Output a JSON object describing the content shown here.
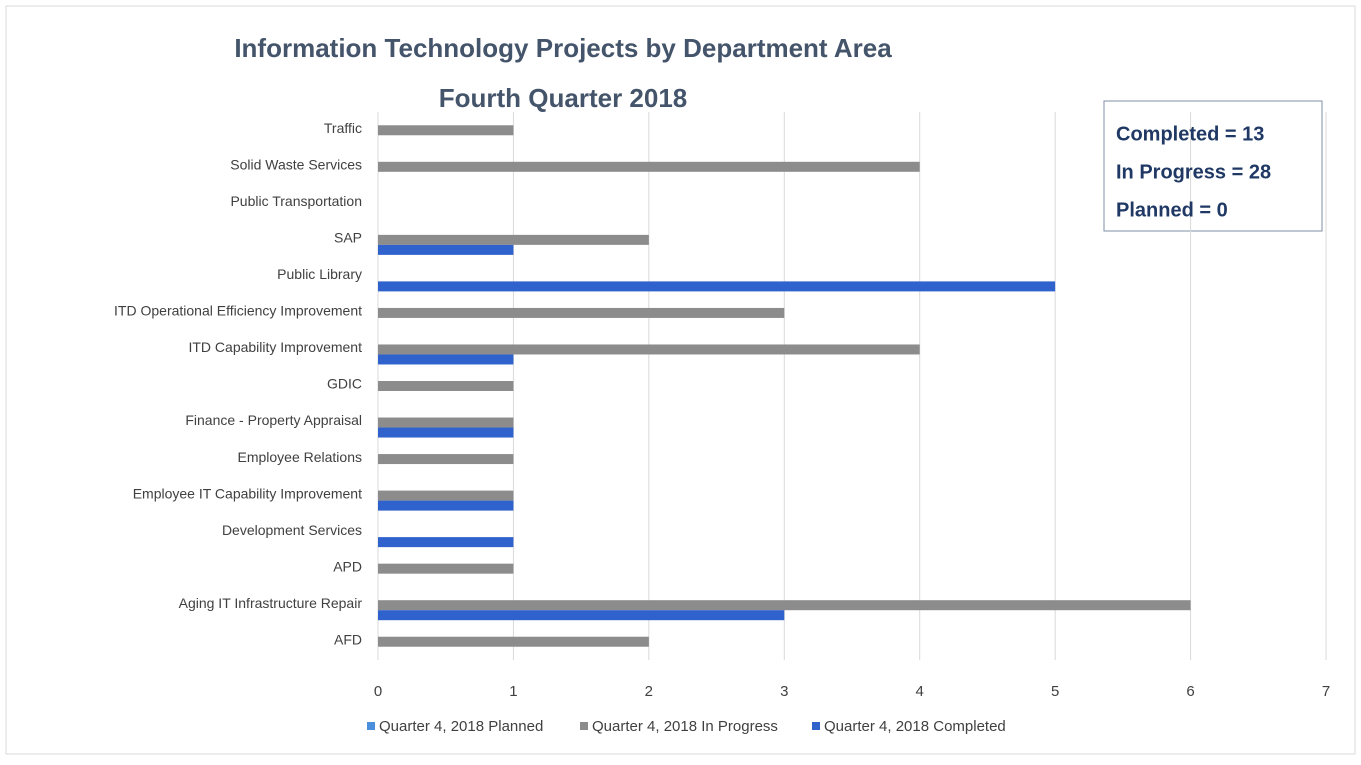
{
  "chart_data": {
    "type": "barh",
    "title": "Information Technology Projects by Department Area",
    "subtitle": "Fourth Quarter 2018",
    "categories": [
      "Traffic",
      "Solid Waste Services",
      "Public Transportation",
      "SAP",
      "Public Library",
      "ITD Operational Efficiency Improvement",
      "ITD Capability Improvement",
      "GDIC",
      "Finance - Property Appraisal",
      "Employee Relations",
      "Employee IT Capability Improvement",
      "Development Services",
      "APD",
      "Aging IT Infrastructure Repair",
      "AFD"
    ],
    "series": [
      {
        "name": "Quarter 4, 2018 Planned",
        "color": "#4a8fdc",
        "values": [
          0,
          0,
          0,
          0,
          0,
          0,
          0,
          0,
          0,
          0,
          0,
          0,
          0,
          0,
          0
        ]
      },
      {
        "name": "Quarter 4, 2018 In Progress",
        "color": "#8c8c8c",
        "values": [
          1,
          4,
          0,
          2,
          0,
          3,
          4,
          1,
          1,
          1,
          1,
          0,
          1,
          6,
          2
        ]
      },
      {
        "name": "Quarter 4, 2018 Completed",
        "color": "#2f62cc",
        "values": [
          0,
          0,
          0,
          1,
          5,
          0,
          1,
          0,
          1,
          0,
          1,
          1,
          0,
          3,
          0
        ]
      }
    ],
    "xlim": [
      0,
      7
    ],
    "xticks": [
      0,
      1,
      2,
      3,
      4,
      5,
      6,
      7
    ],
    "grid": true,
    "legend": "bottom",
    "annotations": [
      "Completed = 13",
      "In Progress = 28",
      "Planned = 0"
    ]
  }
}
